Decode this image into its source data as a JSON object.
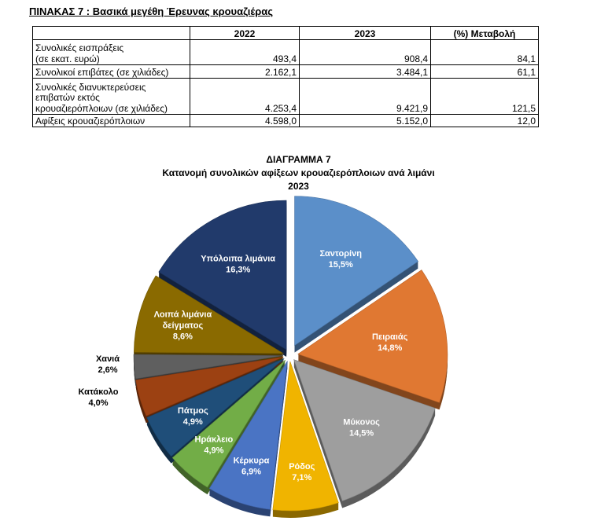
{
  "table": {
    "title": "ΠΙΝΑΚΑΣ 7 : Βασικά μεγέθη Έρευνας κρουαζιέρας",
    "headers": [
      "",
      "2022",
      "2023",
      "(%) Μεταβολή"
    ],
    "rows": [
      {
        "label": "Συνολικές εισπράξεις\n(σε εκατ. ευρώ)",
        "v2022": "493,4",
        "v2023": "908,4",
        "change": "84,1"
      },
      {
        "label": "Συνολικοί επιβάτες (σε χιλιάδες)",
        "v2022": "2.162,1",
        "v2023": "3.484,1",
        "change": "61,1"
      },
      {
        "label": "Συνολικές διανυκτερεύσεις\nεπιβατών εκτός\nκρουαζιερόπλοιων (σε χιλιάδες)",
        "v2022": "4.253,4",
        "v2023": "9.421,9",
        "change": "121,5"
      },
      {
        "label": "Αφίξεις κρουαζιερόπλοιων",
        "v2022": "4.598,0",
        "v2023": "5.152,0",
        "change": "12,0"
      }
    ]
  },
  "chart_data": {
    "type": "pie",
    "title": "ΔΙΑΓΡΑΜΜΑ 7",
    "subtitle": "Κατανομή συνολικών αφίξεων κρουαζιερόπλοιων ανά λιμάνι",
    "year": "2023",
    "slices": [
      {
        "name": "Σαντορίνη",
        "value": 15.5,
        "label": "15,5%",
        "color": "#5b8fc9",
        "text_color": "#ffffff"
      },
      {
        "name": "Πειραιάς",
        "value": 14.8,
        "label": "14,8%",
        "color": "#e07832",
        "text_color": "#ffffff"
      },
      {
        "name": "Μύκονος",
        "value": 14.5,
        "label": "14,5%",
        "color": "#9e9e9e",
        "text_color": "#ffffff"
      },
      {
        "name": "Ρόδος",
        "value": 7.1,
        "label": "7,1%",
        "color": "#f0b400",
        "text_color": "#ffffff"
      },
      {
        "name": "Κέρκυρα",
        "value": 6.9,
        "label": "6,9%",
        "color": "#4a74c4",
        "text_color": "#ffffff"
      },
      {
        "name": "Ηράκλειο",
        "value": 4.9,
        "label": "4,9%",
        "color": "#72ad47",
        "text_color": "#ffffff"
      },
      {
        "name": "Πάτμος",
        "value": 4.9,
        "label": "4,9%",
        "color": "#1f4e79",
        "text_color": "#ffffff"
      },
      {
        "name": "Κατάκολο",
        "value": 4.0,
        "label": "4,0%",
        "color": "#9c4112",
        "text_color": "#000000"
      },
      {
        "name": "Χανιά",
        "value": 2.6,
        "label": "2,6%",
        "color": "#5f5f5f",
        "text_color": "#000000"
      },
      {
        "name": "Λοιπά λιμάνια δείγματος",
        "value": 8.6,
        "label": "8,6%",
        "color": "#8a6a00",
        "text_color": "#ffffff"
      },
      {
        "name": "Υπόλοιπα λιμάνια",
        "value": 16.3,
        "label": "16,3%",
        "color": "#213a6b",
        "text_color": "#ffffff"
      }
    ]
  }
}
